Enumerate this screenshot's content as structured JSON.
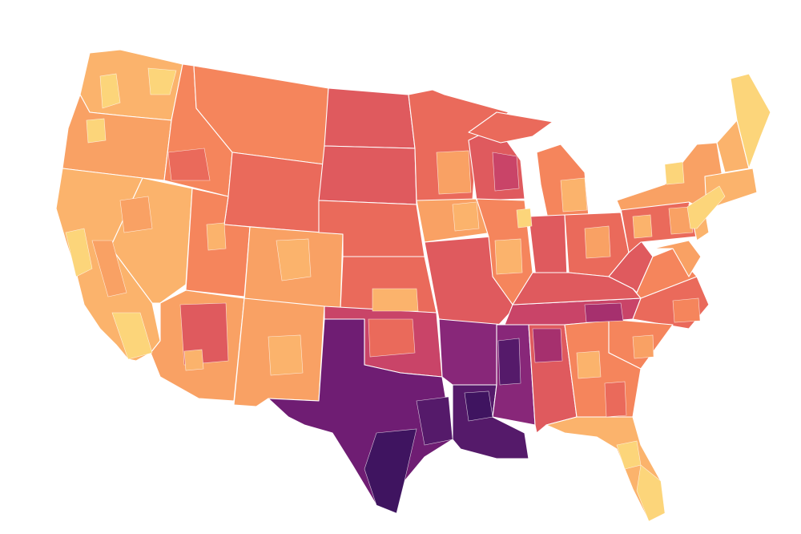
{
  "map": {
    "type": "choropleth",
    "subject": "contiguous-united-states",
    "legend": "none",
    "palette": {
      "c1": "#fcd57a",
      "c2": "#fbb36c",
      "c3": "#f9a164",
      "c4": "#f5855c",
      "c5": "#ea6a5b",
      "c6": "#df5a5e",
      "c7": "#c94468",
      "c8": "#a6306e",
      "c9": "#882779",
      "c10": "#6f1d73",
      "c11": "#551a6a",
      "c12": "#3f1460"
    }
  }
}
